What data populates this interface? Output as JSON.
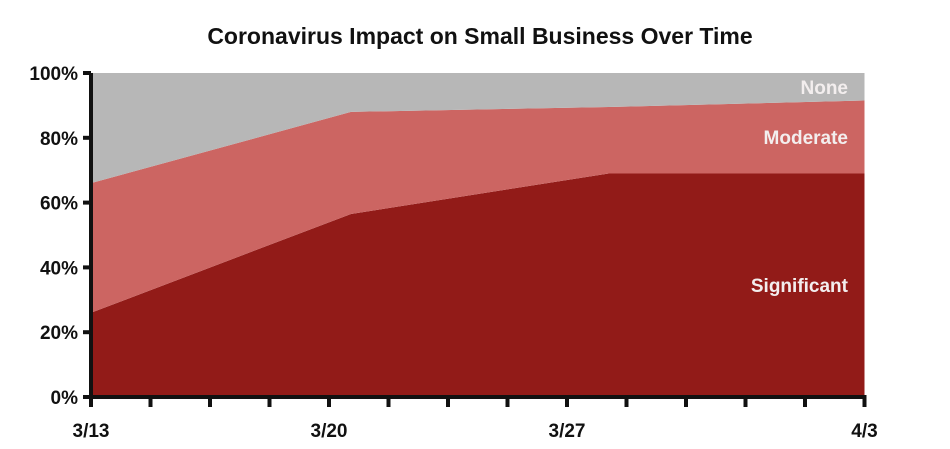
{
  "chart_data": {
    "type": "area",
    "stacked": true,
    "title": "Coronavirus Impact on Small Business Over Time",
    "xlabel": "",
    "ylabel": "",
    "ylim": [
      0,
      100
    ],
    "x_ticks": [
      {
        "pos": 0,
        "label": "3/13"
      },
      {
        "pos": 4,
        "label": "3/20"
      },
      {
        "pos": 8,
        "label": "3/27"
      },
      {
        "pos": 13,
        "label": "4/3"
      }
    ],
    "minor_tick_count": 14,
    "y_ticks": [
      "0%",
      "20%",
      "40%",
      "60%",
      "80%",
      "100%"
    ],
    "x": [
      0,
      4.37,
      8.7,
      13
    ],
    "series": [
      {
        "name": "Significant",
        "color": "#921b18",
        "values": [
          26,
          56.5,
          69,
          69
        ]
      },
      {
        "name": "Moderate",
        "color": "#cc6562",
        "values": [
          40,
          31.5,
          20.5,
          22.5
        ]
      },
      {
        "name": "None",
        "color": "#b7b7b7",
        "values": [
          34,
          12,
          10.5,
          8.5
        ]
      }
    ]
  }
}
